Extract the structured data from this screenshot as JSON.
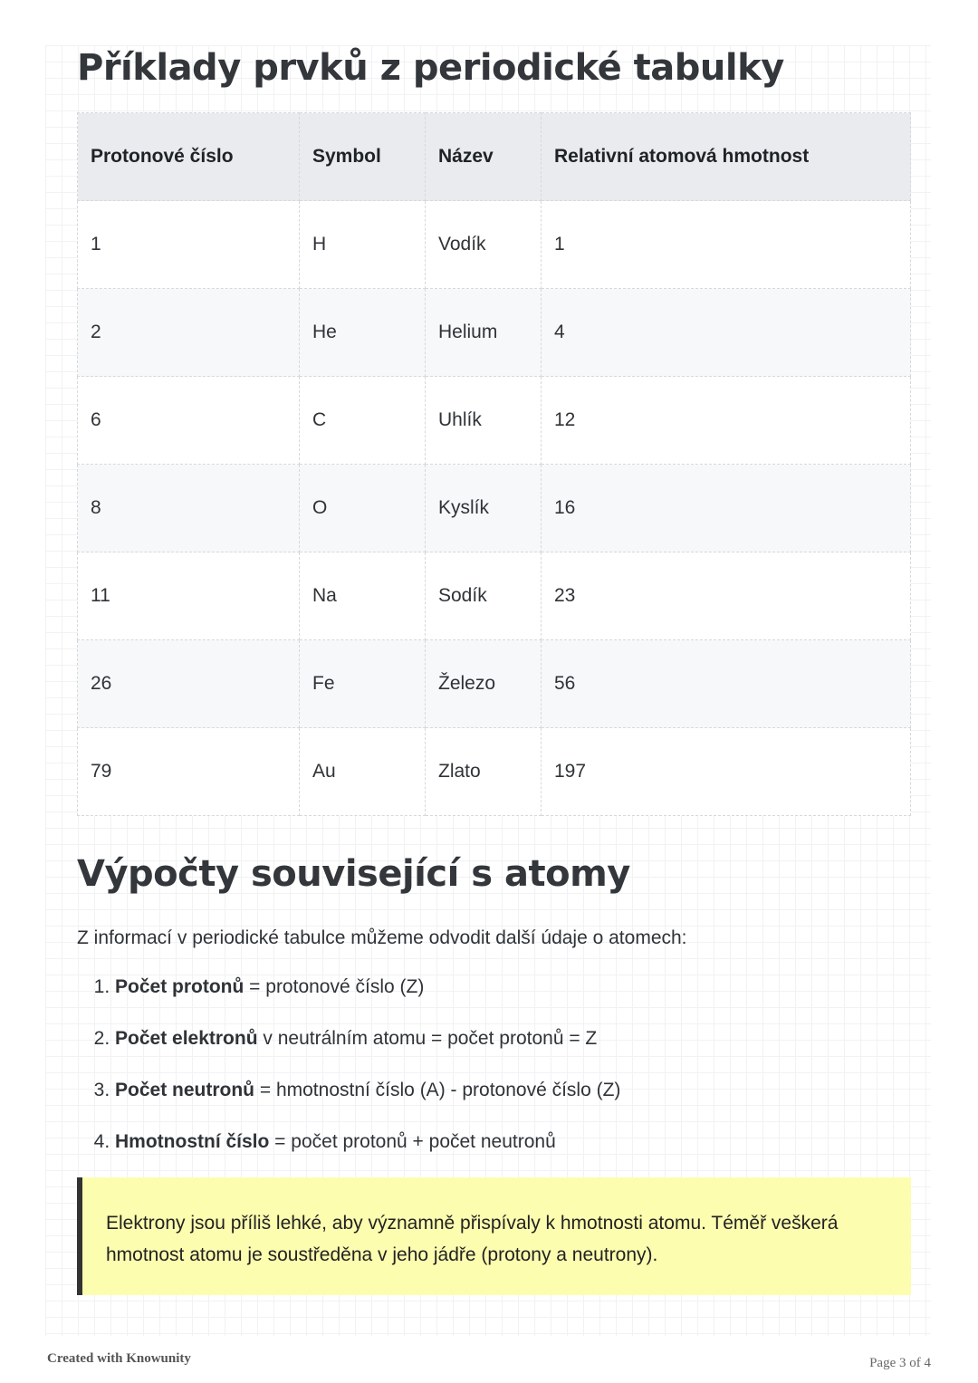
{
  "title": "Příklady prvků z periodické tabulky",
  "table": {
    "headers": [
      "Protonové číslo",
      "Symbol",
      "Název",
      "Relativní atomová hmotnost"
    ],
    "rows": [
      [
        "1",
        "H",
        "Vodík",
        "1"
      ],
      [
        "2",
        "He",
        "Helium",
        "4"
      ],
      [
        "6",
        "C",
        "Uhlík",
        "12"
      ],
      [
        "8",
        "O",
        "Kyslík",
        "16"
      ],
      [
        "11",
        "Na",
        "Sodík",
        "23"
      ],
      [
        "26",
        "Fe",
        "Železo",
        "56"
      ],
      [
        "79",
        "Au",
        "Zlato",
        "197"
      ]
    ]
  },
  "section2": {
    "title": "Výpočty související s atomy",
    "intro": "Z informací v periodické tabulce můžeme odvodit další údaje o atomech:",
    "items": [
      {
        "bold": "Počet protonů",
        "text": " = protonové číslo (Z)"
      },
      {
        "bold": "Počet elektronů",
        "text": " v neutrálním atomu = počet protonů = Z"
      },
      {
        "bold": "Počet neutronů",
        "text": " = hmotnostní číslo (A) - protonové číslo (Z)"
      },
      {
        "bold": "Hmotnostní číslo",
        "text": " = počet protonů + počet neutronů"
      }
    ],
    "callout": "Elektrony jsou příliš lehké, aby významně přispívaly k hmotnosti atomu. Téměř veškerá hmotnost atomu je soustředěna v jeho jádře (protony a neutrony).",
    "callout_color": "#fdfdb0"
  },
  "footer": {
    "left": "Created with Knowunity",
    "right": "Page 3 of 4"
  }
}
